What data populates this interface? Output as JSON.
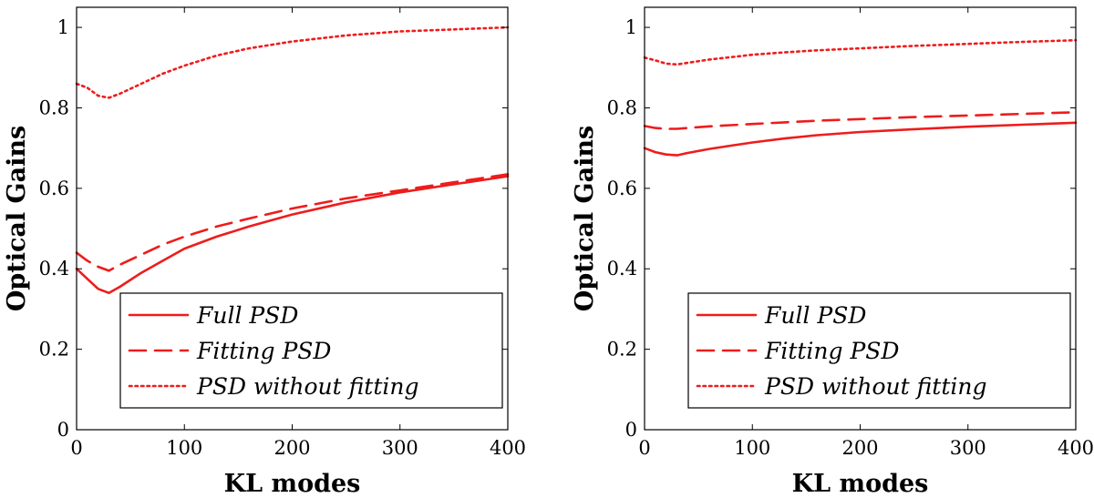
{
  "chart_data": [
    {
      "type": "line",
      "xlabel": "KL modes",
      "ylabel": "Optical Gains",
      "xlim": [
        0,
        400
      ],
      "ylim": [
        0,
        1.05
      ],
      "xticks": [
        "0",
        "100",
        "200",
        "300",
        "400"
      ],
      "yticks": [
        "0",
        "0.2",
        "0.4",
        "0.6",
        "0.8",
        "1"
      ],
      "legend_position": "bottom-right",
      "series": [
        {
          "name": "Full PSD",
          "style": "solid",
          "color": "#ee1c1c",
          "x": [
            0,
            10,
            20,
            30,
            40,
            60,
            80,
            100,
            130,
            160,
            200,
            250,
            300,
            350,
            400
          ],
          "y": [
            0.4,
            0.375,
            0.35,
            0.34,
            0.355,
            0.39,
            0.42,
            0.45,
            0.48,
            0.505,
            0.535,
            0.565,
            0.59,
            0.61,
            0.63
          ]
        },
        {
          "name": "Fitting PSD",
          "style": "dashed",
          "color": "#ee1c1c",
          "x": [
            0,
            10,
            20,
            30,
            40,
            60,
            80,
            100,
            130,
            160,
            200,
            250,
            300,
            350,
            400
          ],
          "y": [
            0.44,
            0.42,
            0.405,
            0.395,
            0.41,
            0.435,
            0.46,
            0.48,
            0.505,
            0.525,
            0.55,
            0.575,
            0.595,
            0.615,
            0.635
          ]
        },
        {
          "name": "PSD without fitting",
          "style": "dotted",
          "color": "#ee1c1c",
          "x": [
            0,
            10,
            20,
            30,
            40,
            60,
            80,
            100,
            130,
            160,
            200,
            250,
            300,
            350,
            400
          ],
          "y": [
            0.86,
            0.85,
            0.83,
            0.825,
            0.835,
            0.86,
            0.885,
            0.905,
            0.93,
            0.948,
            0.965,
            0.98,
            0.99,
            0.995,
            1.0
          ]
        }
      ]
    },
    {
      "type": "line",
      "xlabel": "KL modes",
      "ylabel": "Optical Gains",
      "xlim": [
        0,
        400
      ],
      "ylim": [
        0,
        1.05
      ],
      "xticks": [
        "0",
        "100",
        "200",
        "300",
        "400"
      ],
      "yticks": [
        "0",
        "0.2",
        "0.4",
        "0.6",
        "0.8",
        "1"
      ],
      "legend_position": "bottom-right",
      "series": [
        {
          "name": "Full PSD",
          "style": "solid",
          "color": "#ee1c1c",
          "x": [
            0,
            10,
            20,
            30,
            40,
            60,
            80,
            100,
            130,
            160,
            200,
            250,
            300,
            350,
            400
          ],
          "y": [
            0.7,
            0.69,
            0.684,
            0.682,
            0.688,
            0.698,
            0.706,
            0.714,
            0.724,
            0.732,
            0.74,
            0.747,
            0.753,
            0.758,
            0.763
          ]
        },
        {
          "name": "Fitting PSD",
          "style": "dashed",
          "color": "#ee1c1c",
          "x": [
            0,
            10,
            20,
            30,
            40,
            60,
            80,
            100,
            130,
            160,
            200,
            250,
            300,
            350,
            400
          ],
          "y": [
            0.755,
            0.75,
            0.748,
            0.748,
            0.75,
            0.754,
            0.757,
            0.76,
            0.764,
            0.768,
            0.772,
            0.777,
            0.781,
            0.785,
            0.789
          ]
        },
        {
          "name": "PSD without fitting",
          "style": "dotted",
          "color": "#ee1c1c",
          "x": [
            0,
            10,
            20,
            30,
            40,
            60,
            80,
            100,
            130,
            160,
            200,
            250,
            300,
            350,
            400
          ],
          "y": [
            0.925,
            0.918,
            0.91,
            0.908,
            0.912,
            0.92,
            0.926,
            0.932,
            0.938,
            0.943,
            0.948,
            0.954,
            0.959,
            0.964,
            0.968
          ]
        }
      ]
    }
  ]
}
